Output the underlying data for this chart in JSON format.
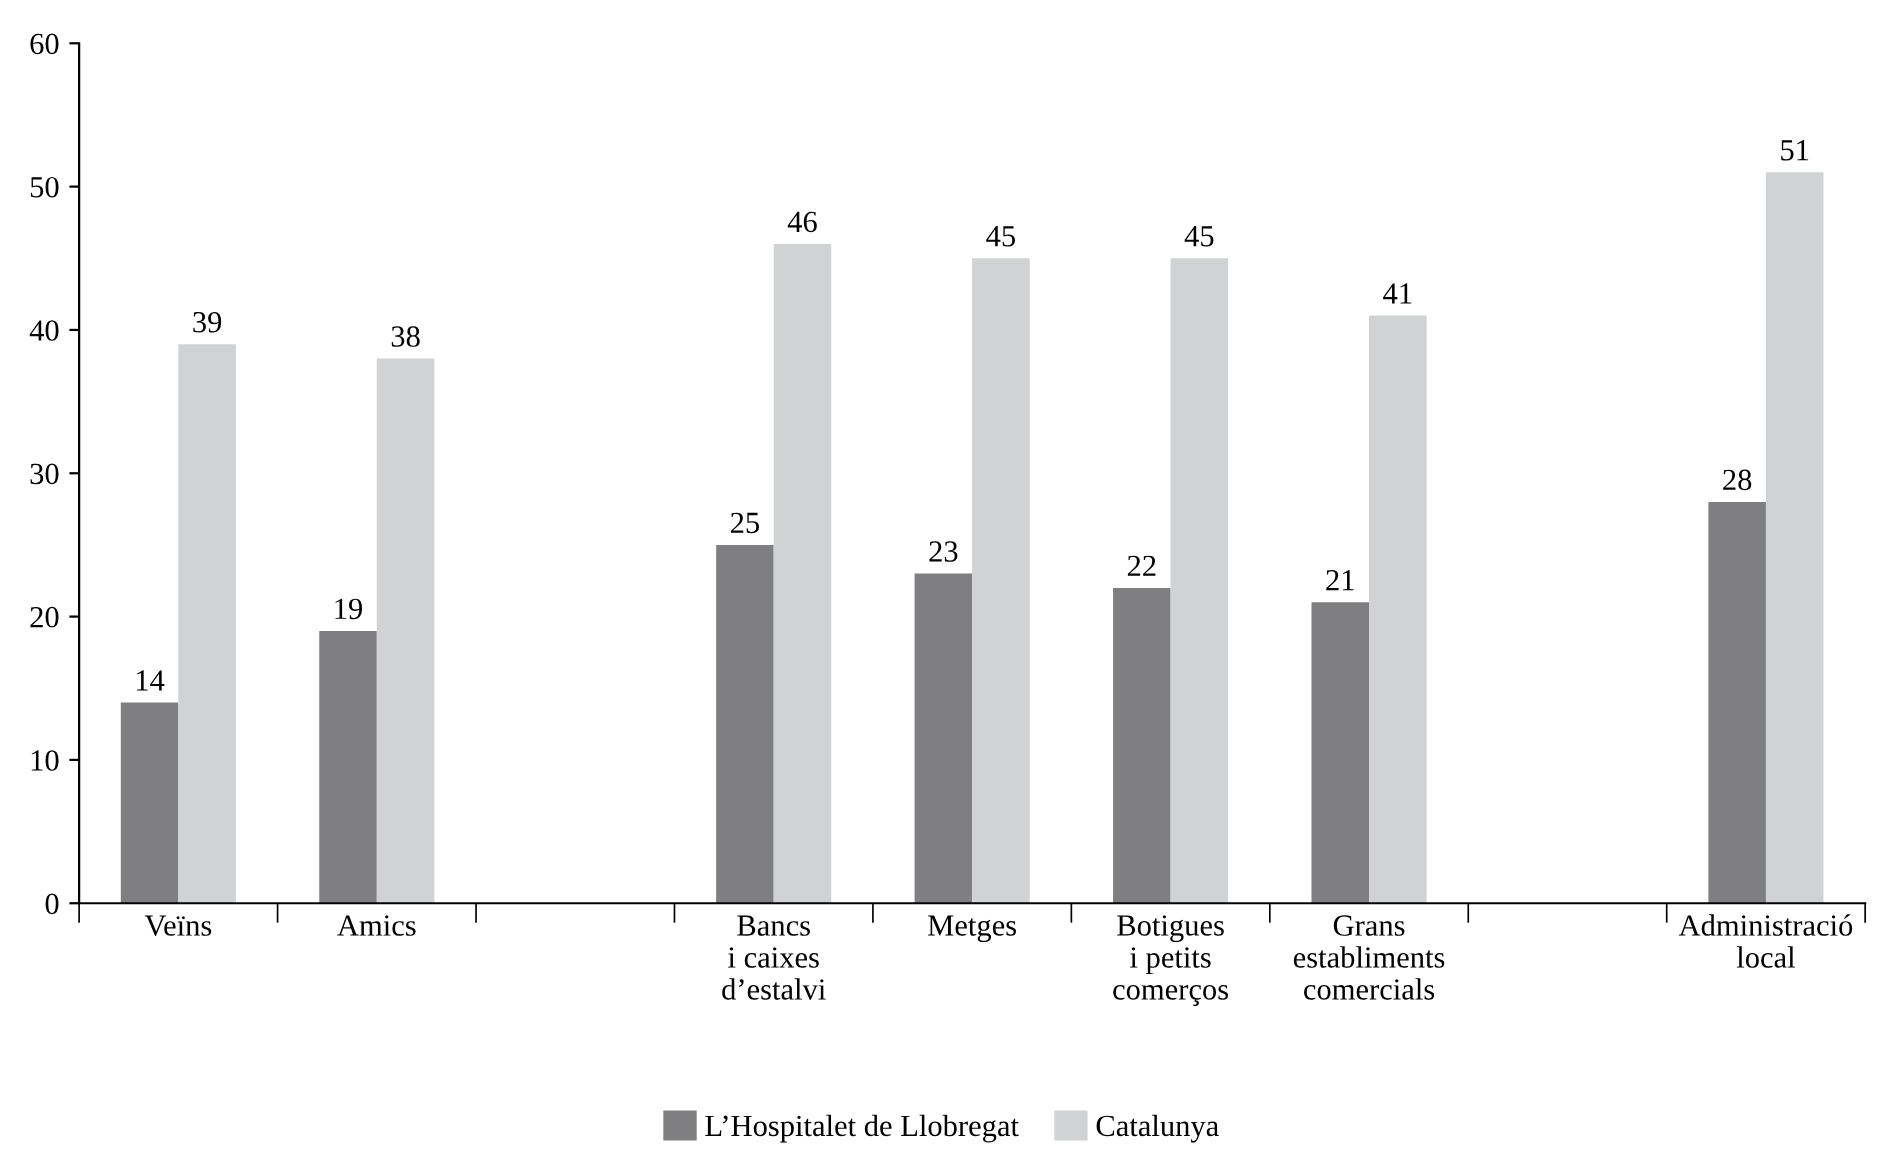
{
  "chart_data": {
    "type": "bar",
    "categories": [
      "Veïns",
      "Amics",
      null,
      "Bancs\ni caixes\nd’estalvi",
      "Metges",
      "Botigues\ni petits\ncomerços",
      "Grans\nestabliments\ncomercials",
      null,
      "Administració\nlocal"
    ],
    "series": [
      {
        "name": "L’Hospitalet de Llobregat",
        "color": "#7f7f82",
        "values": [
          14,
          19,
          null,
          25,
          23,
          22,
          21,
          null,
          28
        ]
      },
      {
        "name": "Catalunya",
        "color": "#d1d2d4",
        "values": [
          39,
          38,
          null,
          46,
          45,
          45,
          41,
          null,
          51
        ]
      }
    ],
    "ylim": [
      0,
      60
    ],
    "yticks": [
      0,
      10,
      20,
      30,
      40,
      50,
      60
    ],
    "data_labels": true,
    "grid": false,
    "legend": "bottom"
  }
}
